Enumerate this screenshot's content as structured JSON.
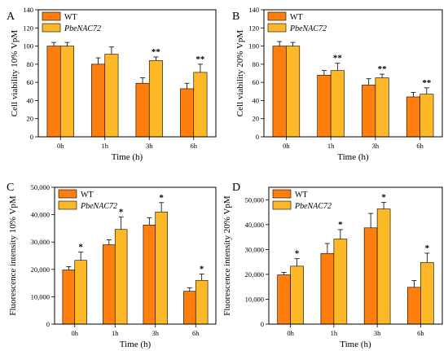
{
  "colors": {
    "wt": "#ff7f0e",
    "pbe": "#fdb827",
    "stroke": "#000000"
  },
  "chart_data": [
    {
      "type": "bar",
      "panel": "A",
      "xlabel": "Time (h)",
      "ylabel": "Cell viability 10% VpM",
      "categories": [
        "0h",
        "1h",
        "3h",
        "6h"
      ],
      "ylim": [
        0,
        140
      ],
      "yticks": [
        0,
        20,
        40,
        60,
        80,
        100,
        120,
        140
      ],
      "ytick_labels": [
        "0",
        "20",
        "40",
        "60",
        "80",
        "100",
        "120",
        "140"
      ],
      "legend_position": "top-left",
      "series": [
        {
          "name": "WT",
          "values": [
            100,
            80,
            59,
            53
          ],
          "errors": [
            4,
            7,
            6,
            6
          ]
        },
        {
          "name": "PbeNAC72",
          "values": [
            100,
            91,
            84,
            71
          ],
          "errors": [
            4,
            8,
            4,
            9
          ]
        }
      ],
      "significance": [
        "",
        "",
        "**",
        "**"
      ]
    },
    {
      "type": "bar",
      "panel": "B",
      "xlabel": "Time (h)",
      "ylabel": "Cell viability 20% VpM",
      "categories": [
        "0h",
        "1h",
        "3h",
        "6h"
      ],
      "ylim": [
        0,
        140
      ],
      "yticks": [
        0,
        20,
        40,
        60,
        80,
        100,
        120,
        140
      ],
      "ytick_labels": [
        "0",
        "20",
        "40",
        "60",
        "80",
        "100",
        "120",
        "140"
      ],
      "legend_position": "top-left",
      "series": [
        {
          "name": "WT",
          "values": [
            100,
            68,
            57,
            44
          ],
          "errors": [
            5,
            5,
            7,
            5
          ]
        },
        {
          "name": "PbeNAC72",
          "values": [
            100,
            73,
            65,
            47
          ],
          "errors": [
            4,
            8,
            4,
            7
          ]
        }
      ],
      "significance": [
        "",
        "**",
        "**",
        "**"
      ]
    },
    {
      "type": "bar",
      "panel": "C",
      "xlabel": "Time (h)",
      "ylabel": "Fluorescence intensity 10% VpM",
      "categories": [
        "0h",
        "1h",
        "3h",
        "6h"
      ],
      "ylim": [
        0,
        50000
      ],
      "yticks": [
        0,
        10000,
        20000,
        30000,
        40000,
        50000
      ],
      "ytick_labels": [
        "0",
        "10,000",
        "20,000",
        "30,000",
        "40,000",
        "50,000"
      ],
      "legend_position": "top-left",
      "series": [
        {
          "name": "WT",
          "values": [
            19800,
            29000,
            36200,
            12000
          ],
          "errors": [
            1200,
            1800,
            2700,
            1300
          ]
        },
        {
          "name": "PbeNAC72",
          "values": [
            23300,
            34600,
            41000,
            16000
          ],
          "errors": [
            3000,
            4600,
            3400,
            2300
          ]
        }
      ],
      "significance": [
        "*",
        "*",
        "*",
        "*"
      ]
    },
    {
      "type": "bar",
      "panel": "D",
      "xlabel": "Time (h)",
      "ylabel": "Fluorescence intensity 20% VpM",
      "categories": [
        "0h",
        "1h",
        "3h",
        "6h"
      ],
      "ylim": [
        0,
        55000
      ],
      "yticks": [
        0,
        10000,
        20000,
        30000,
        40000,
        50000
      ],
      "ytick_labels": [
        "0",
        "10,000",
        "20,000",
        "30,000",
        "40,000",
        "50,000"
      ],
      "legend_position": "top-left",
      "series": [
        {
          "name": "WT",
          "values": [
            19800,
            28400,
            38700,
            14800
          ],
          "errors": [
            1000,
            4000,
            5800,
            2700
          ]
        },
        {
          "name": "PbeNAC72",
          "values": [
            23300,
            34200,
            46300,
            24800
          ],
          "errors": [
            3000,
            3800,
            2600,
            3700
          ]
        }
      ],
      "significance": [
        "*",
        "*",
        "*",
        "*"
      ]
    }
  ]
}
